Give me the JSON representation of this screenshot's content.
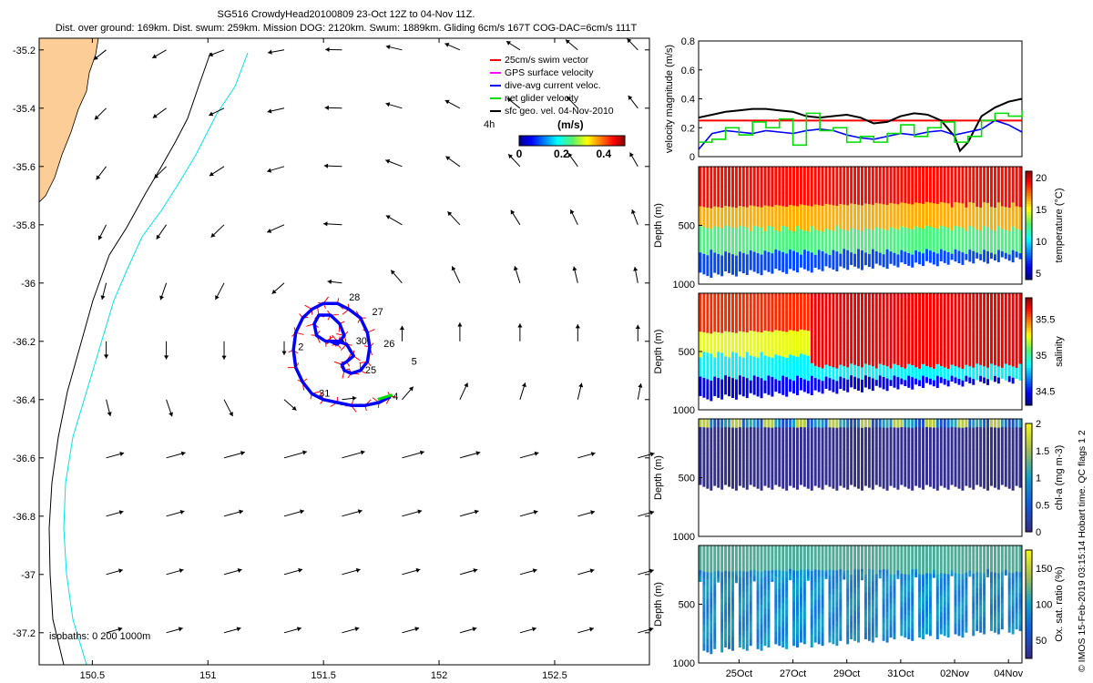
{
  "header": {
    "title": "SG516 CrowdyHead20100809 23-Oct 12Z to 04-Nov 11Z.",
    "subtitle": "Dist. over ground: 169km. Dist. swum: 259km. Mission DOG: 2120km. Swum: 1889km. Gliding 6cm/s 167T COG-DAC=6cm/s 111T"
  },
  "legend": {
    "items": [
      {
        "label": "25cm/s swim vector",
        "color": "#ff0000"
      },
      {
        "label": "GPS surface velocity",
        "color": "#ff00ff"
      },
      {
        "label": "dive-avg current veloc.",
        "color": "#0000ff"
      },
      {
        "label": "net glider velocity",
        "color": "#00dd00"
      },
      {
        "label": "sfc geo. vel. 04-Nov-2010",
        "color": "#000000"
      }
    ],
    "colorbar_title": "(m/s)",
    "colorbar_ticks": [
      "0",
      "0.2",
      "0.4"
    ],
    "colorbar_range": [
      0,
      0.5
    ],
    "marker_4h": "4h"
  },
  "credit": "© IMOS 15-Feb-2019 03:15:14 Hobart time. QC flags 1  2",
  "colors": {
    "land": "#fccd96",
    "coast": "#000000",
    "isobath_200": "#000000",
    "isobath_1000": "#00e5ee",
    "track": "#0000ff",
    "swim": "#ff0000"
  },
  "chart_data": [
    {
      "type": "scatter",
      "panel": "map",
      "x_ticks": [
        "150.5",
        "151",
        "151.5",
        "152",
        "152.5"
      ],
      "y_ticks": [
        "-35.2",
        "-35.4",
        "-35.6",
        "-35.8",
        "-36",
        "-36.2",
        "-36.4",
        "-36.6",
        "-36.8",
        "-37",
        "-37.2"
      ],
      "xlim": [
        150.27,
        152.91
      ],
      "ylim": [
        -37.31,
        -35.16
      ],
      "isobath_label": "isobaths: 0   200  1000m",
      "day_labels": [
        {
          "text": "28",
          "lon": 151.61,
          "lat": -36.06
        },
        {
          "text": "27",
          "lon": 151.71,
          "lat": -36.11
        },
        {
          "text": "26",
          "lon": 151.76,
          "lat": -36.22
        },
        {
          "text": "25",
          "lon": 151.68,
          "lat": -36.31
        },
        {
          "text": "30",
          "lon": 151.64,
          "lat": -36.21
        },
        {
          "text": "5",
          "lon": 151.88,
          "lat": -36.28
        },
        {
          "text": "4",
          "lon": 151.8,
          "lat": -36.4
        },
        {
          "text": "2",
          "lon": 151.39,
          "lat": -36.23
        },
        {
          "text": "31",
          "lon": 151.48,
          "lat": -36.39
        }
      ],
      "track": [
        [
          151.79,
          -36.39
        ],
        [
          151.74,
          -36.41
        ],
        [
          151.68,
          -36.42
        ],
        [
          151.62,
          -36.42
        ],
        [
          151.56,
          -36.41
        ],
        [
          151.5,
          -36.4
        ],
        [
          151.45,
          -36.38
        ],
        [
          151.41,
          -36.34
        ],
        [
          151.38,
          -36.29
        ],
        [
          151.37,
          -36.23
        ],
        [
          151.38,
          -36.17
        ],
        [
          151.41,
          -36.12
        ],
        [
          151.45,
          -36.09
        ],
        [
          151.5,
          -36.07
        ],
        [
          151.56,
          -36.07
        ],
        [
          151.61,
          -36.09
        ],
        [
          151.66,
          -36.12
        ],
        [
          151.69,
          -36.17
        ],
        [
          151.7,
          -36.22
        ],
        [
          151.69,
          -36.27
        ],
        [
          151.66,
          -36.3
        ],
        [
          151.62,
          -36.31
        ],
        [
          151.59,
          -36.3
        ],
        [
          151.58,
          -36.28
        ],
        [
          151.6,
          -36.27
        ],
        [
          151.63,
          -36.25
        ],
        [
          151.6,
          -36.21
        ],
        [
          151.56,
          -36.2
        ],
        [
          151.51,
          -36.2
        ],
        [
          151.47,
          -36.18
        ],
        [
          151.46,
          -36.14
        ],
        [
          151.48,
          -36.11
        ],
        [
          151.53,
          -36.11
        ],
        [
          151.57,
          -36.14
        ],
        [
          151.59,
          -36.18
        ],
        [
          151.56,
          -36.21
        ],
        [
          151.53,
          -36.2
        ]
      ],
      "current_field": {
        "lons": [
          150.56,
          150.82,
          151.07,
          151.33,
          151.58,
          151.84,
          152.09,
          152.35,
          152.6,
          152.86
        ],
        "lats": [
          -35.2,
          -35.4,
          -35.6,
          -35.8,
          -36.0,
          -36.2,
          -36.4,
          -36.6,
          -36.8,
          -37.0,
          -37.2
        ]
      }
    },
    {
      "type": "line",
      "panel": "velocity",
      "ylabel": "velocity magnitude (m/s)",
      "y_ticks": [
        "0",
        "0.2",
        "0.4",
        "0.6",
        "0.8"
      ],
      "ylim": [
        0,
        0.8
      ],
      "x_ticks": [
        "25Oct",
        "27Oct",
        "29Oct",
        "31Oct",
        "02Nov",
        "04Nov"
      ],
      "xlim_days": [
        23.5,
        35.5
      ],
      "swim_reference": 0.25,
      "series": [
        {
          "color": "#000000",
          "x": [
            23.5,
            24,
            24.5,
            25,
            25.5,
            26,
            26.5,
            27,
            27.5,
            28,
            28.5,
            29,
            29.5,
            30,
            30.5,
            31,
            31.5,
            32,
            32.5,
            33,
            33.2,
            33.5,
            34,
            34.5,
            35,
            35.5
          ],
          "values": [
            0.27,
            0.29,
            0.31,
            0.32,
            0.33,
            0.33,
            0.32,
            0.31,
            0.28,
            0.27,
            0.28,
            0.29,
            0.27,
            0.23,
            0.24,
            0.28,
            0.3,
            0.29,
            0.25,
            0.14,
            0.04,
            0.1,
            0.28,
            0.34,
            0.38,
            0.4
          ]
        },
        {
          "color": "#0000ff",
          "x": [
            23.5,
            24,
            24.5,
            25,
            25.5,
            26,
            26.5,
            27,
            27.5,
            28,
            28.5,
            29,
            29.5,
            30,
            30.5,
            31,
            31.5,
            32,
            32.5,
            33,
            33.5,
            34,
            34.5,
            35,
            35.5
          ],
          "values": [
            0.05,
            0.16,
            0.18,
            0.17,
            0.16,
            0.18,
            0.17,
            0.16,
            0.18,
            0.19,
            0.18,
            0.15,
            0.13,
            0.12,
            0.14,
            0.16,
            0.15,
            0.17,
            0.18,
            0.15,
            0.17,
            0.19,
            0.25,
            0.22,
            0.17
          ]
        },
        {
          "color": "#00dd00",
          "x": [
            23.5,
            24,
            24.5,
            25,
            25.5,
            26,
            26.5,
            27,
            27.5,
            28,
            28.5,
            29,
            29.5,
            30,
            30.5,
            31,
            31.5,
            32,
            32.5,
            33,
            33.5,
            34,
            34.5,
            35,
            35.5
          ],
          "values": [
            0.1,
            0.12,
            0.2,
            0.15,
            0.24,
            0.2,
            0.26,
            0.08,
            0.3,
            0.18,
            0.2,
            0.1,
            0.14,
            0.1,
            0.16,
            0.22,
            0.14,
            0.2,
            0.24,
            0.1,
            0.14,
            0.25,
            0.3,
            0.28,
            0.32
          ]
        }
      ]
    },
    {
      "type": "heatmap",
      "panel": "temperature",
      "ylabel": "Depth (m)",
      "y_ticks": [
        "500",
        "1000"
      ],
      "ylim": [
        1000,
        0
      ],
      "colorbar_label": "temperature (°C)",
      "colorbar_ticks": [
        "5",
        "10",
        "15",
        "20"
      ],
      "colorbar_range": [
        4,
        21
      ]
    },
    {
      "type": "heatmap",
      "panel": "salinity",
      "ylabel": "Depth (m)",
      "y_ticks": [
        "500",
        "1000"
      ],
      "ylim": [
        1000,
        0
      ],
      "colorbar_label": "salinity",
      "colorbar_ticks": [
        "34.5",
        "35",
        "35.5"
      ],
      "colorbar_range": [
        34.3,
        35.8
      ]
    },
    {
      "type": "heatmap",
      "panel": "chla",
      "ylabel": "Depth (m)",
      "y_ticks": [
        "500",
        "1000"
      ],
      "ylim": [
        1000,
        0
      ],
      "colorbar_label": "chl-a (mg m-3)",
      "colorbar_ticks": [
        "0",
        "0.5",
        "1",
        "1.5",
        "2"
      ],
      "colorbar_range": [
        0,
        2
      ]
    },
    {
      "type": "heatmap",
      "panel": "oxygen",
      "ylabel": "Depth (m)",
      "y_ticks": [
        "500",
        "1000"
      ],
      "ylim": [
        1000,
        0
      ],
      "colorbar_label": "Ox. sat. ratio (%)",
      "colorbar_ticks": [
        "50",
        "100",
        "150"
      ],
      "colorbar_range": [
        25,
        175
      ]
    }
  ]
}
